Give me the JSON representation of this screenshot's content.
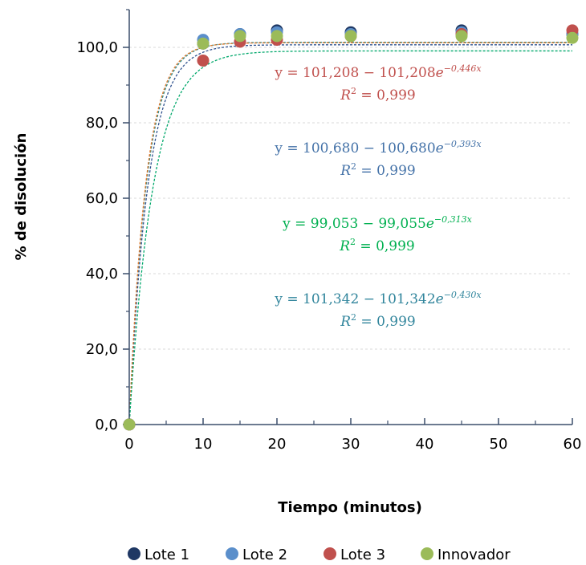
{
  "chart_data": {
    "type": "scatter",
    "xlabel": "Tiempo (minutos)",
    "ylabel": "% de disolución",
    "xlim": [
      0,
      60
    ],
    "ylim": [
      0,
      110
    ],
    "x_ticks": [
      "0",
      "10",
      "20",
      "30",
      "40",
      "50",
      "60"
    ],
    "y_ticks": [
      "0,0",
      "20,0",
      "40,0",
      "60,0",
      "80,0",
      "100,0"
    ],
    "grid": "horizontal dashed",
    "legend_position": "bottom",
    "series": [
      {
        "name": "Lote 1",
        "color": "#1F3864",
        "x": [
          0,
          10,
          15,
          20,
          30,
          45,
          60
        ],
        "y": [
          0,
          101.0,
          103.5,
          104.5,
          104.0,
          104.5,
          103.5
        ],
        "fit": {
          "a": 101.342,
          "b": 101.342,
          "k": 0.43,
          "color": "#2E8B8B"
        }
      },
      {
        "name": "Lote 2",
        "color": "#5B8FCB",
        "x": [
          0,
          10,
          15,
          20,
          30,
          45,
          60
        ],
        "y": [
          0,
          102.0,
          103.5,
          104.0,
          103.5,
          104.0,
          103.5
        ],
        "fit": {
          "a": 100.68,
          "b": 100.68,
          "k": 0.393,
          "color": "#2F528F"
        }
      },
      {
        "name": "Lote 3",
        "color": "#C0504D",
        "x": [
          0,
          10,
          15,
          20,
          30,
          45,
          60
        ],
        "y": [
          0,
          96.5,
          101.5,
          102.0,
          103.0,
          103.5,
          104.5
        ],
        "fit": {
          "a": 101.208,
          "b": 101.208,
          "k": 0.446,
          "color": "#E07A2E"
        }
      },
      {
        "name": "Innovador",
        "color": "#9BBB59",
        "x": [
          0,
          10,
          15,
          20,
          30,
          45,
          60
        ],
        "y": [
          0,
          101.0,
          103.0,
          103.0,
          103.0,
          103.0,
          102.5
        ],
        "fit": {
          "a": 99.053,
          "b": 99.055,
          "k": 0.313,
          "color": "#00A86B"
        }
      }
    ],
    "annotations": [
      {
        "series": "Lote 3",
        "color": "#C0504D",
        "eq_main": "y = 101,208 − 101,208",
        "eq_exp": "−0,446x",
        "r2": " = 0,999"
      },
      {
        "series": "Lote 2",
        "color": "#4472A8",
        "eq_main": "y = 100,680 − 100,680",
        "eq_exp": "−0,393x",
        "r2": " = 0,999"
      },
      {
        "series": "Innovador",
        "color": "#00B050",
        "eq_main": "y = 99,053 − 99,055",
        "eq_exp": "−0,313x",
        "r2": " = 0,999"
      },
      {
        "series": "Lote 1",
        "color": "#31859C",
        "eq_main": "y = 101,342 − 101,342",
        "eq_exp": "−0,430x",
        "r2": " = 0,999"
      }
    ]
  }
}
